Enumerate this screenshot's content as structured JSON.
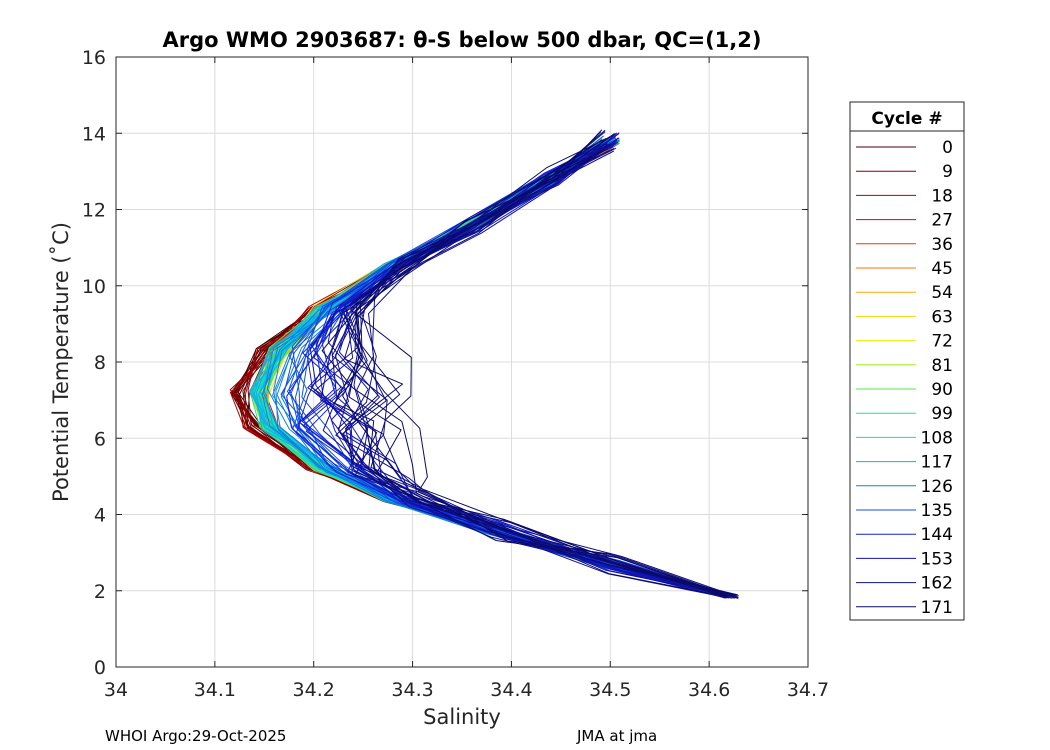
{
  "chart_data": {
    "type": "line",
    "title": "Argo WMO 2903687: θ-S below 500 dbar,  QC=(1,2)",
    "xlabel": "Salinity",
    "ylabel": "Potential Temperature (˚C)",
    "xlim": [
      34.0,
      34.7
    ],
    "ylim": [
      0,
      16
    ],
    "xticks": [
      "34",
      "34.1",
      "34.2",
      "34.3",
      "34.4",
      "34.5",
      "34.6",
      "34.7"
    ],
    "yticks": [
      "0",
      "2",
      "4",
      "6",
      "8",
      "10",
      "12",
      "14",
      "16"
    ],
    "grid": true,
    "legend": {
      "title": "Cycle #",
      "placement": "right",
      "entries": [
        "0",
        "9",
        "18",
        "27",
        "36",
        "45",
        "54",
        "63",
        "72",
        "81",
        "90",
        "99",
        "108",
        "117",
        "126",
        "135",
        "144",
        "153",
        "162",
        "171"
      ],
      "colors": [
        "#4d0000",
        "#800000",
        "#b30000",
        "#e60000",
        "#ff3300",
        "#ff7000",
        "#ffa500",
        "#ffd500",
        "#e6f000",
        "#9ef01a",
        "#4ee84a",
        "#1fe0a0",
        "#10d6d6",
        "#10b0e8",
        "#1080e0",
        "#1050e0",
        "#1020d0",
        "#1010b0",
        "#10108a",
        "#0a0a66"
      ]
    },
    "series_template": [
      {
        "salinity": 34.62,
        "theta": 1.8
      },
      {
        "salinity": 34.5,
        "theta": 2.7
      },
      {
        "salinity": 34.38,
        "theta": 3.6
      },
      {
        "salinity": 34.28,
        "theta": 4.4
      },
      {
        "salinity": 34.21,
        "theta": 5.2
      },
      {
        "salinity": 34.155,
        "theta": 6.3
      },
      {
        "salinity": 34.145,
        "theta": 7.2
      },
      {
        "salinity": 34.165,
        "theta": 8.3
      },
      {
        "salinity": 34.21,
        "theta": 9.4
      },
      {
        "salinity": 34.28,
        "theta": 10.5
      },
      {
        "salinity": 34.36,
        "theta": 11.6
      },
      {
        "salinity": 34.44,
        "theta": 12.8
      },
      {
        "salinity": 34.5,
        "theta": 13.8
      }
    ]
  },
  "footer": {
    "left": "WHOI Argo:29-Oct-2025",
    "right": "JMA at jma"
  }
}
